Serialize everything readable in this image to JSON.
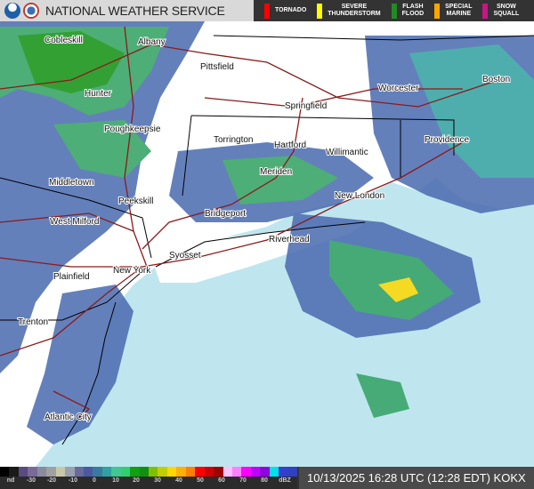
{
  "header": {
    "title": "NATIONAL WEATHER SERVICE",
    "logos": [
      "noaa-logo",
      "nws-logo"
    ]
  },
  "warnings": [
    {
      "label": "TORNADO",
      "color": "#ff0000"
    },
    {
      "label": "SEVERE\nTHUNDERSTORM",
      "color": "#ffff00"
    },
    {
      "label": "FLASH\nFLOOD",
      "color": "#228b22"
    },
    {
      "label": "SPECIAL\nMARINE",
      "color": "#ffa500"
    },
    {
      "label": "SNOW\nSQUALL",
      "color": "#c71585"
    }
  ],
  "map": {
    "colors": {
      "ocean": "#bfe6ee",
      "land": "#ffffff",
      "roads": "#8b1a1a",
      "borders": "#000000"
    },
    "cities": [
      "Cobleskill",
      "Albany",
      "Pittsfield",
      "Hunter",
      "Springfield",
      "Worcester",
      "Boston",
      "Torrington",
      "Hartford",
      "Willimantic",
      "Providence",
      "Poughkeepsie",
      "Meriden",
      "Middletown",
      "New London",
      "Peekskill",
      "Bridgeport",
      "West Milford",
      "Riverhead",
      "Syosset",
      "Plainfield",
      "New York",
      "Trenton",
      "Atlantic City"
    ]
  },
  "legend": {
    "ticks": [
      "nd",
      "-30",
      "-20",
      "-10",
      "0",
      "10",
      "20",
      "30",
      "40",
      "50",
      "60",
      "70",
      "80",
      "dBZ"
    ],
    "colors": [
      "#000000",
      "#1a1a1a",
      "#5a4a80",
      "#7a6a98",
      "#8a8aa0",
      "#a0a0a0",
      "#c8c8a8",
      "#9aa0b0",
      "#6a6a9a",
      "#4a5aa0",
      "#3a7aa0",
      "#30a0a0",
      "#40c890",
      "#30d070",
      "#10a010",
      "#109010",
      "#80c000",
      "#c0d000",
      "#ffd800",
      "#ffb000",
      "#ff8000",
      "#ff0000",
      "#d00000",
      "#a00000",
      "#ffc0ff",
      "#ff80ff",
      "#ff00ff",
      "#c000ff",
      "#9000e0",
      "#00e0e8",
      "#3040d0",
      "#3040c0"
    ]
  },
  "timestamp": "10/13/2025 16:28 UTC (12:28 EDT) KOKX"
}
